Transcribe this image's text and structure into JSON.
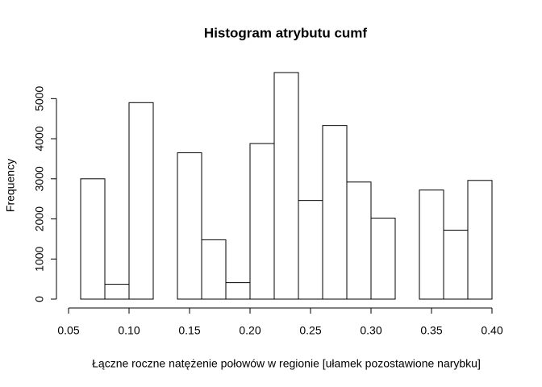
{
  "chart_data": {
    "type": "histogram",
    "title": "Histogram atrybutu cumf",
    "x_label": "Łączne roczne natężenie połowów w regionie [ułamek pozostawione narybku]",
    "y_label": "Frequency",
    "bins": [
      0.06,
      0.08,
      0.1,
      0.12,
      0.14,
      0.16,
      0.18,
      0.2,
      0.22,
      0.24,
      0.26,
      0.28,
      0.3,
      0.32,
      0.34,
      0.36,
      0.38,
      0.4
    ],
    "counts": [
      3000,
      370,
      4900,
      0,
      3650,
      1480,
      410,
      3880,
      5650,
      2460,
      4330,
      2920,
      2020,
      0,
      2720,
      1720,
      2960
    ],
    "color": "#ffffff",
    "xlim": [
      0.05,
      0.4
    ],
    "xticks": [
      0.05,
      {
        "value": 0.1,
        "label": "0.10"
      },
      0.15,
      {
        "value": 0.2,
        "label": "0.20"
      },
      0.25,
      {
        "value": 0.3,
        "label": "0.30"
      },
      0.35,
      {
        "value": 0.4,
        "label": "0.40"
      }
    ],
    "ylim": [
      0,
      5650
    ],
    "yticks": [
      0,
      1000,
      2000,
      3000,
      4000,
      5000
    ]
  }
}
